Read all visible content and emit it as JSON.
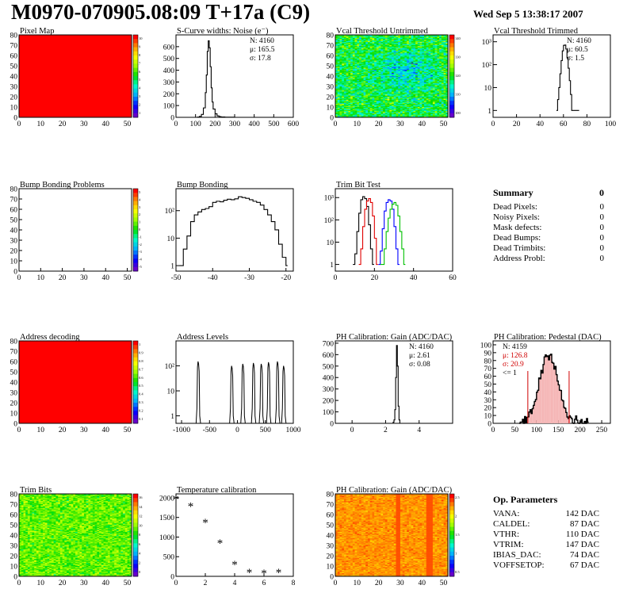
{
  "page": {
    "title": "M0970-070905.08:09 T+17a (C9)",
    "date": "Wed Sep  5 13:38:17 2007"
  },
  "summary": {
    "title": "Summary",
    "value": "0",
    "rows": [
      {
        "label": "Dead Pixels:",
        "value": "0"
      },
      {
        "label": "Noisy Pixels:",
        "value": "0"
      },
      {
        "label": "Mask defects:",
        "value": "0"
      },
      {
        "label": "Dead Bumps:",
        "value": "0"
      },
      {
        "label": "Dead Trimbits:",
        "value": "0"
      },
      {
        "label": "Address Probl:",
        "value": "0"
      }
    ]
  },
  "op_params": {
    "title": "Op. Parameters",
    "rows": [
      {
        "label": "VANA:",
        "value": "142 DAC"
      },
      {
        "label": "CALDEL:",
        "value": "87 DAC"
      },
      {
        "label": "VTHR:",
        "value": "110 DAC"
      },
      {
        "label": "VTRIM:",
        "value": "147 DAC"
      },
      {
        "label": "IBIAS_DAC:",
        "value": "74 DAC"
      },
      {
        "label": "VOFFSETOP:",
        "value": "67 DAC"
      }
    ]
  },
  "chart_data": [
    {
      "id": "pixel-map",
      "type": "heatmap",
      "title": "Pixel Map",
      "xlim": [
        0,
        52
      ],
      "ylim": [
        0,
        80
      ],
      "xticks": [
        0,
        10,
        20,
        30,
        40,
        50
      ],
      "yticks": [
        0,
        10,
        20,
        30,
        40,
        50,
        60,
        70,
        80
      ],
      "fill": "uniform-max",
      "palette": {
        "colorbar_ticks": [
          "10",
          "9",
          "8",
          "7",
          "6",
          "5",
          "4",
          "3",
          "2",
          "1"
        ]
      }
    },
    {
      "id": "s-curve",
      "type": "line",
      "title": "S-Curve widths: Noise (e⁻)",
      "xlim": [
        0,
        600
      ],
      "ylim": [
        0,
        700
      ],
      "xticks": [
        0,
        100,
        200,
        300,
        400,
        500,
        600
      ],
      "yticks": [
        0,
        100,
        200,
        300,
        400,
        500,
        600
      ],
      "stats": [
        "N: 4160",
        "μ: 165.5",
        "σ: 17.8"
      ],
      "x": [
        100,
        110,
        120,
        130,
        140,
        150,
        155,
        160,
        165,
        170,
        175,
        180,
        185,
        190,
        200,
        210,
        220,
        230,
        250,
        280,
        300
      ],
      "values": [
        0,
        2,
        8,
        25,
        80,
        210,
        360,
        560,
        650,
        590,
        430,
        250,
        130,
        70,
        30,
        12,
        6,
        3,
        1,
        1,
        0
      ]
    },
    {
      "id": "vcal-untrimmed",
      "type": "heatmap",
      "title": "Vcal Threshold Untrimmed",
      "xlim": [
        0,
        52
      ],
      "ylim": [
        0,
        80
      ],
      "xticks": [
        0,
        10,
        20,
        30,
        40,
        50
      ],
      "yticks": [
        0,
        10,
        20,
        30,
        40,
        50,
        60,
        70,
        80
      ],
      "fill": "noise-cyan-green",
      "palette": {
        "colorbar_ticks": [
          "140",
          "130",
          "120",
          "110",
          "100"
        ]
      }
    },
    {
      "id": "vcal-trimmed",
      "type": "line",
      "title": "Vcal Threshold Trimmed",
      "xlim": [
        0,
        100
      ],
      "log_y": true,
      "ylim_exp": [
        -0.3,
        3.3
      ],
      "xticks": [
        0,
        20,
        40,
        60,
        80,
        100
      ],
      "ytick_labels": [
        "1",
        "10",
        "10²",
        "10³"
      ],
      "stats": [
        "N: 4160",
        "μ: 60.5",
        "σ:  1.5"
      ],
      "x": [
        54,
        55,
        56,
        57,
        58,
        59,
        60,
        61,
        62,
        63,
        64,
        65,
        66,
        67,
        72
      ],
      "values": [
        1,
        3,
        10,
        40,
        150,
        400,
        700,
        720,
        480,
        200,
        70,
        20,
        5,
        1,
        1
      ]
    },
    {
      "id": "bump-problems",
      "type": "heatmap",
      "title": "Bump Bonding Problems",
      "xlim": [
        0,
        52
      ],
      "ylim": [
        0,
        80
      ],
      "xticks": [
        0,
        10,
        20,
        30,
        40,
        50
      ],
      "yticks": [
        0,
        10,
        20,
        30,
        40,
        50,
        60,
        70,
        80
      ],
      "fill": "empty",
      "palette": {
        "colorbar_ticks": [
          "5",
          "4",
          "3",
          "2",
          "1",
          "0",
          "-1",
          "-2",
          "-3",
          "-4",
          "-5"
        ]
      }
    },
    {
      "id": "bump-bonding",
      "type": "line",
      "title": "Bump Bonding",
      "xlim": [
        -50,
        -18
      ],
      "log_y": true,
      "ylim_exp": [
        -0.2,
        2.8
      ],
      "xticks": [
        -50,
        -40,
        -30,
        -20
      ],
      "ytick_labels": [
        "1",
        "10",
        "10²"
      ],
      "x": [
        -49,
        -48,
        -47,
        -46,
        -45,
        -44,
        -43,
        -42,
        -41,
        -40,
        -39,
        -38,
        -37,
        -36,
        -35,
        -34,
        -33,
        -32,
        -31,
        -30,
        -29,
        -28,
        -27,
        -26,
        -25,
        -24,
        -23,
        -22,
        -21,
        -20
      ],
      "values": [
        1,
        4,
        12,
        40,
        70,
        90,
        110,
        120,
        140,
        200,
        220,
        210,
        240,
        260,
        250,
        270,
        320,
        300,
        280,
        250,
        220,
        200,
        160,
        110,
        70,
        40,
        20,
        6,
        2,
        1
      ]
    },
    {
      "id": "trim-bit-test",
      "type": "line",
      "title": "Trim Bit Test",
      "xlim": [
        0,
        60
      ],
      "log_y": true,
      "ylim_exp": [
        -0.3,
        3.4
      ],
      "xticks": [
        0,
        20,
        40,
        60
      ],
      "ytick_labels": [
        "1",
        "10",
        "10²",
        "10³"
      ],
      "series": [
        {
          "color": "#000000",
          "x": [
            9,
            10,
            11,
            12,
            13,
            14,
            15,
            16,
            17,
            18,
            19
          ],
          "values": [
            1,
            3,
            30,
            200,
            800,
            1100,
            900,
            400,
            60,
            5,
            1
          ]
        },
        {
          "color": "#e00000",
          "x": [
            12,
            13,
            14,
            15,
            16,
            17,
            18,
            19,
            20,
            21
          ],
          "values": [
            1,
            5,
            50,
            300,
            700,
            900,
            600,
            150,
            15,
            1
          ]
        },
        {
          "color": "#0000ff",
          "x": [
            22,
            23,
            24,
            25,
            26,
            27,
            28,
            29,
            30,
            31,
            32
          ],
          "values": [
            1,
            4,
            40,
            250,
            600,
            800,
            700,
            300,
            50,
            5,
            1
          ]
        },
        {
          "color": "#00c000",
          "x": [
            23,
            25,
            26,
            27,
            28,
            29,
            30,
            31,
            32,
            33,
            34,
            35
          ],
          "values": [
            1,
            5,
            30,
            120,
            300,
            500,
            600,
            450,
            150,
            30,
            5,
            1
          ]
        }
      ]
    },
    {
      "id": "address-decoding",
      "type": "heatmap",
      "title": "Address decoding",
      "xlim": [
        0,
        52
      ],
      "ylim": [
        0,
        80
      ],
      "xticks": [
        0,
        10,
        20,
        30,
        40,
        50
      ],
      "yticks": [
        0,
        10,
        20,
        30,
        40,
        50,
        60,
        70,
        80
      ],
      "fill": "uniform-max",
      "palette": {
        "colorbar_ticks": [
          "1",
          "0.9",
          "0.8",
          "0.7",
          "0.6",
          "0.5",
          "0.4",
          "0.3",
          "0.2",
          "0.1"
        ]
      }
    },
    {
      "id": "address-levels",
      "type": "line",
      "title": "Address Levels",
      "xlim": [
        -1100,
        1000
      ],
      "log_y": true,
      "ylim_exp": [
        -0.3,
        3.0
      ],
      "xticks": [
        -1000,
        -500,
        0,
        500,
        1000
      ],
      "ytick_labels": [
        "1",
        "10",
        "10²"
      ],
      "peaks": [
        -700,
        -100,
        100,
        290,
        430,
        560,
        720,
        830
      ],
      "peak_heights": [
        150,
        100,
        120,
        130,
        120,
        140,
        150,
        100
      ]
    },
    {
      "id": "ph-gain",
      "type": "line",
      "title": "PH Calibration: Gain (ADC/DAC)",
      "xlim": [
        -1,
        6
      ],
      "ylim": [
        0,
        720
      ],
      "xticks": [
        0,
        2,
        4
      ],
      "yticks": [
        0,
        100,
        200,
        300,
        400,
        500,
        600,
        700
      ],
      "stats": [
        "N: 4160",
        "μ: 2.61",
        "σ: 0.08"
      ],
      "x": [
        2.4,
        2.45,
        2.5,
        2.55,
        2.6,
        2.65,
        2.7,
        2.75,
        2.8,
        2.85
      ],
      "values": [
        0,
        10,
        30,
        120,
        400,
        680,
        500,
        150,
        30,
        0
      ]
    },
    {
      "id": "ph-pedestal",
      "type": "bar",
      "title": "PH Calibration: Pedestal (DAC)",
      "xlim": [
        0,
        270
      ],
      "ylim": [
        0,
        105
      ],
      "xticks": [
        0,
        50,
        100,
        150,
        200,
        250
      ],
      "yticks": [
        0,
        10,
        20,
        30,
        40,
        50,
        60,
        70,
        80,
        90,
        100
      ],
      "stats": [
        "N: 4159",
        "μ: 126.8",
        "σ: 20.9",
        "<= 1"
      ],
      "stats_colors": [
        "#000000",
        "#d00000",
        "#d00000",
        "#000000"
      ],
      "mean": 126.8,
      "sigma": 20.9,
      "cut_lines": [
        80,
        175
      ],
      "bins_start": 60,
      "bin_width": 2.5
    },
    {
      "id": "trim-bits",
      "type": "heatmap",
      "title": "Trim Bits",
      "xlim": [
        0,
        52
      ],
      "ylim": [
        0,
        80
      ],
      "xticks": [
        0,
        10,
        20,
        30,
        40,
        50
      ],
      "yticks": [
        0,
        10,
        20,
        30,
        40,
        50,
        60,
        70,
        80
      ],
      "fill": "noise-green-yellow",
      "palette": {
        "colorbar_ticks": [
          "16",
          "14",
          "12",
          "10",
          "8",
          "6",
          "4",
          "2",
          "0"
        ]
      }
    },
    {
      "id": "temperature-calibration",
      "type": "scatter",
      "title": "Temperature calibration",
      "xlim": [
        0,
        8
      ],
      "ylim": [
        0,
        2100
      ],
      "xticks": [
        0,
        2,
        4,
        6,
        8
      ],
      "yticks": [
        0,
        500,
        1000,
        1500,
        2000
      ],
      "x": [
        0,
        1,
        2,
        3,
        4,
        5,
        6,
        7
      ],
      "values": [
        1950,
        1770,
        1350,
        830,
        280,
        80,
        60,
        80
      ]
    },
    {
      "id": "ph-gain-map",
      "type": "heatmap",
      "title": "PH Calibration: Gain (ADC/DAC)",
      "xlim": [
        0,
        52
      ],
      "ylim": [
        0,
        80
      ],
      "xticks": [
        0,
        10,
        20,
        30,
        40,
        50
      ],
      "yticks": [
        0,
        10,
        20,
        30,
        40,
        50,
        60,
        70,
        80
      ],
      "fill": "noise-red-orange",
      "palette": {
        "colorbar_ticks": [
          "2.5",
          "2",
          "1.5",
          "1",
          "0.5"
        ]
      }
    }
  ]
}
